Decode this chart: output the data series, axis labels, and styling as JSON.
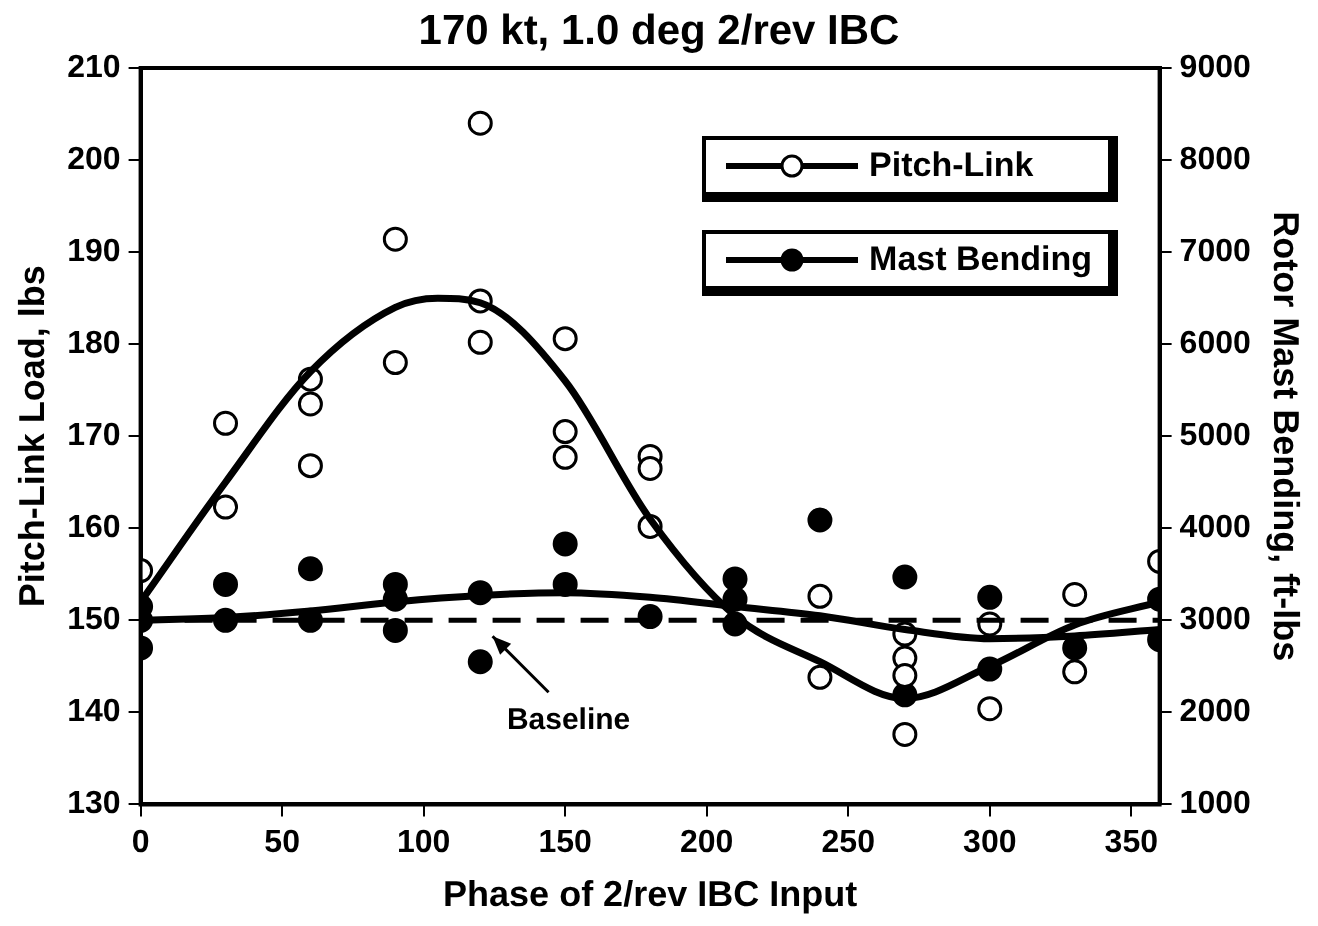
{
  "chart_data": {
    "type": "scatter",
    "title": "170 kt, 1.0 deg 2/rev IBC",
    "xlabel": "Phase of 2/rev IBC Input",
    "ylabel": "Pitch-Link Load, lbs",
    "y2label": "Rotor Mast Bending, ft-lbs",
    "xlim": [
      0,
      360
    ],
    "xticks": [
      0,
      50,
      100,
      150,
      200,
      250,
      300,
      350
    ],
    "ylim": [
      130,
      210
    ],
    "yticks": [
      130,
      140,
      150,
      160,
      170,
      180,
      190,
      200,
      210
    ],
    "y2lim": [
      1000,
      9000
    ],
    "y2ticks": [
      1000,
      2000,
      3000,
      4000,
      5000,
      6000,
      7000,
      8000,
      9000
    ],
    "grid": false,
    "legend": "top right",
    "marker": "circle",
    "series": [
      {
        "name": "Pitch-Link",
        "type": "scatter",
        "color": "#000000",
        "x": [
          0,
          30,
          30,
          60,
          60,
          60,
          90,
          90,
          120,
          120,
          120,
          150,
          150,
          150,
          180,
          180,
          180,
          240,
          240,
          270,
          270,
          270,
          270,
          300,
          300,
          330,
          330,
          360
        ],
        "values": [
          155.4,
          171.4,
          162.3,
          176.2,
          173.5,
          166.8,
          191.4,
          178,
          204,
          184.7,
          180.2,
          180.6,
          170.5,
          167.7,
          167.8,
          166.5,
          160.2,
          152.6,
          143.8,
          148.5,
          145.9,
          144,
          137.6,
          149.6,
          140.4,
          152.8,
          144.4,
          156.4
        ]
      },
      {
        "type": "line",
        "color": "#000000",
        "marker": "none",
        "x": [
          0,
          30,
          60,
          90,
          105,
          120,
          150,
          180,
          210,
          240,
          270,
          300,
          330,
          360
        ],
        "values": [
          152,
          165,
          177,
          184,
          185,
          184.5,
          176,
          161,
          150.5,
          145.5,
          141.5,
          145,
          149.5,
          152
        ]
      },
      {
        "name": "Mast Bending",
        "type": "scatter",
        "axis": "y2",
        "color": "#000000",
        "x": [
          0,
          0,
          0,
          30,
          30,
          60,
          60,
          90,
          90,
          90,
          120,
          120,
          150,
          150,
          180,
          210,
          210,
          210,
          240,
          270,
          270,
          300,
          300,
          330,
          360,
          360
        ],
        "values": [
          3150,
          3000,
          2700,
          3390,
          3000,
          3560,
          3000,
          3390,
          3230,
          2890,
          3300,
          2550,
          3830,
          3390,
          3040,
          3450,
          3230,
          2960,
          4090,
          3470,
          2190,
          3250,
          2470,
          2700,
          3230,
          2790
        ]
      },
      {
        "type": "line",
        "axis": "y2",
        "color": "#000000",
        "marker": "none",
        "x": [
          0,
          30,
          60,
          90,
          120,
          150,
          180,
          210,
          240,
          270,
          300,
          330,
          360
        ],
        "values": [
          3000,
          3030,
          3100,
          3200,
          3270,
          3300,
          3250,
          3150,
          3050,
          2900,
          2800,
          2830,
          2900
        ]
      }
    ],
    "ref_lines": [
      {
        "axis": "y",
        "value": 150,
        "label": "Baseline",
        "line_style": "dashed",
        "color": "#000000"
      }
    ]
  }
}
